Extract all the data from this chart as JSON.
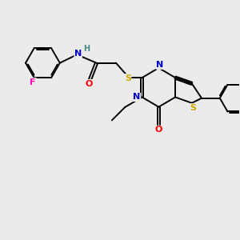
{
  "background_color": "#ebebeb",
  "fig_size": [
    3.0,
    3.0
  ],
  "dpi": 100,
  "atom_colors": {
    "C": "#000000",
    "N": "#0000cc",
    "O": "#ff0000",
    "S": "#ccaa00",
    "F": "#ff00bb",
    "H": "#4a8a8a"
  },
  "bond_color": "#000000",
  "bond_width": 1.4,
  "font_size_atom": 8
}
